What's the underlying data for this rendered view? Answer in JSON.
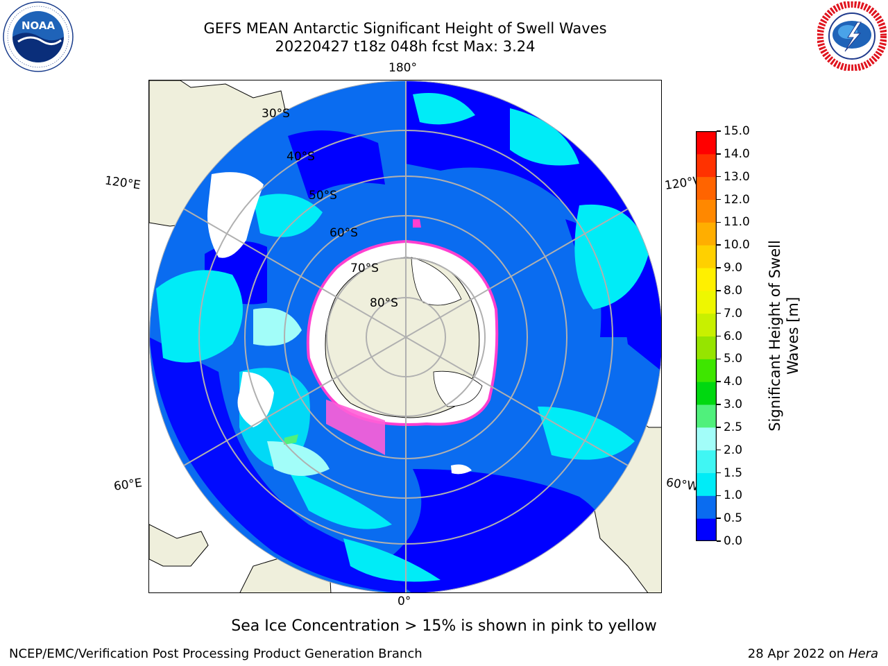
{
  "header": {
    "title_line1": "GEFS MEAN Antarctic Significant Height of Swell Waves",
    "title_line2": "20220427 t18z 048h fcst   Max: 3.24"
  },
  "logos": {
    "left": {
      "icon": "noaa-logo",
      "text": "NOAA",
      "ring_text": "NATIONAL OCEANIC AND ATMOSPHERIC ADMINISTRATION · U.S. DEPARTMENT OF COMMERCE"
    },
    "right": {
      "icon": "nws-logo",
      "ring_text": "NATIONAL WEATHER SERVICE"
    }
  },
  "map": {
    "projection": "south-polar-stereographic",
    "longitude_labels": {
      "top": "180°",
      "bottom": "0°",
      "upper_left": "120°E",
      "upper_right": "120°W",
      "lower_left": "60°E",
      "lower_right": "60°W"
    },
    "latitude_labels": [
      "30°S",
      "40°S",
      "50°S",
      "60°S",
      "70°S",
      "80°S"
    ],
    "colors": {
      "land": "#efefdc",
      "grid": "#b0b0b0",
      "ice_edge": "#ff3fd0"
    }
  },
  "colorbar": {
    "label_line1": "Significant Height of Swell",
    "label_line2": "Waves [m]",
    "ticks": [
      "0.0",
      "0.5",
      "1.0",
      "1.5",
      "2.0",
      "2.5",
      "3.0",
      "4.0",
      "5.0",
      "6.0",
      "7.0",
      "8.0",
      "9.0",
      "10.0",
      "11.0",
      "12.0",
      "13.0",
      "14.0",
      "15.0"
    ],
    "colors": [
      "#0000ff",
      "#0a6cf0",
      "#00ecf7",
      "#40f6f3",
      "#a2fdf9",
      "#50f07c",
      "#00d810",
      "#3ee600",
      "#96e400",
      "#c8f000",
      "#eef700",
      "#fff000",
      "#ffd000",
      "#ffae00",
      "#ff8800",
      "#ff6400",
      "#ff3200",
      "#ff0000"
    ]
  },
  "caption": "Sea Ice Concentration > 15% is shown in pink to yellow",
  "footer": {
    "left": "NCEP/EMC/Verification Post Processing Product Generation Branch",
    "right_date": "28 Apr 2022 on",
    "right_host": "Hera"
  }
}
